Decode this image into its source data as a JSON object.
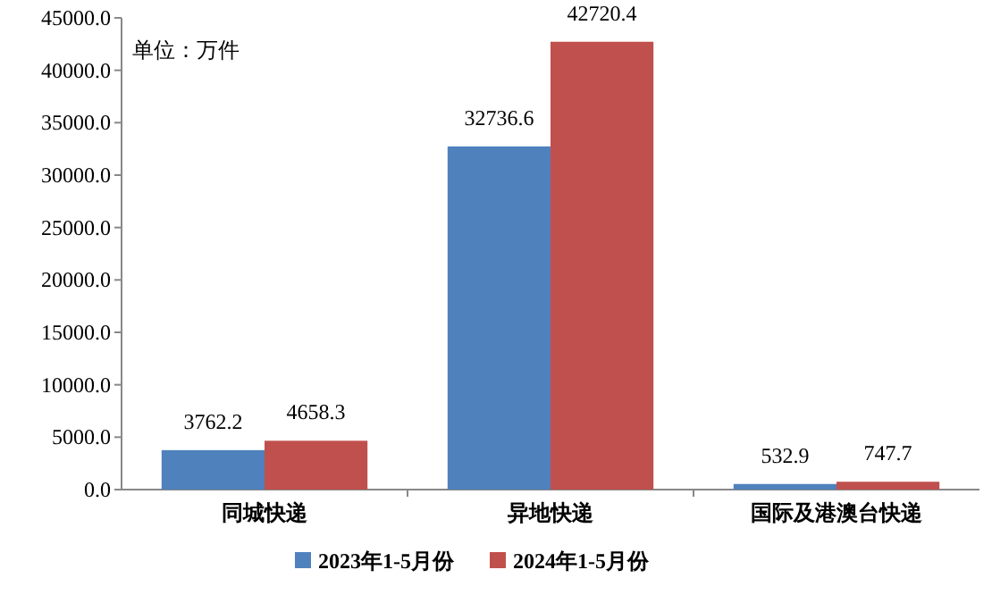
{
  "chart_data": {
    "type": "bar",
    "categories": [
      "同城快递",
      "异地快递",
      "国际及港澳台快递"
    ],
    "series": [
      {
        "name": "2023年1-5月份",
        "color": "#4f81bd",
        "values": [
          3762.2,
          32736.6,
          532.9
        ]
      },
      {
        "name": "2024年1-5月份",
        "color": "#c0504d",
        "values": [
          4658.3,
          42720.4,
          747.7
        ]
      }
    ],
    "ylim": [
      0,
      45000
    ],
    "yticks": [
      {
        "value": 0,
        "label": "0.0"
      },
      {
        "value": 5000,
        "label": "5000.0"
      },
      {
        "value": 10000,
        "label": "10000.0"
      },
      {
        "value": 15000,
        "label": "15000.0"
      },
      {
        "value": 20000,
        "label": "20000.0"
      },
      {
        "value": 25000,
        "label": "25000.0"
      },
      {
        "value": 30000,
        "label": "30000.0"
      },
      {
        "value": 35000,
        "label": "35000.0"
      },
      {
        "value": 40000,
        "label": "40000.0"
      },
      {
        "value": 45000,
        "label": "45000.0"
      }
    ],
    "annotations": [
      "单位：万件"
    ],
    "data_labels": true,
    "legend": "bottom",
    "grid": false
  }
}
